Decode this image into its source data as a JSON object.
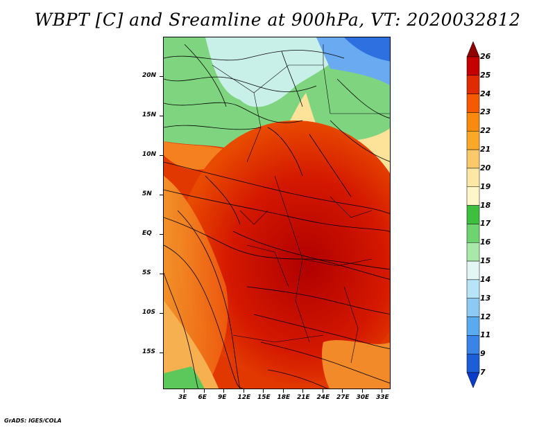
{
  "title": "WBPT [C] and Sreamline at 900hPa, VT: 2020032812",
  "footer": "GrADS: IGES/COLA",
  "map": {
    "variable": "Wet-bulb potential temperature",
    "units": "C",
    "level": "900hPa",
    "valid_time": "2020032812",
    "lat_labels": [
      "20N",
      "15N",
      "10N",
      "5N",
      "EQ",
      "5S",
      "10S",
      "15S"
    ],
    "lon_labels": [
      "3E",
      "6E",
      "9E",
      "12E",
      "15E",
      "18E",
      "21E",
      "24E",
      "27E",
      "30E",
      "33E"
    ]
  },
  "colorbar": {
    "labels": [
      "26",
      "25",
      "24",
      "23",
      "22",
      "21",
      "20",
      "19",
      "18",
      "17",
      "16",
      "15",
      "14",
      "13",
      "12",
      "11",
      "9",
      "7"
    ],
    "colors": [
      "#8f0000",
      "#c40000",
      "#e02a00",
      "#f55a00",
      "#f88a10",
      "#f9a828",
      "#fbc86a",
      "#fde7a4",
      "#fdf6c8",
      "#3fbf3f",
      "#6fd46f",
      "#a8e8a8",
      "#e2f6f4",
      "#b8e4f8",
      "#8ccaf4",
      "#5aaaf0",
      "#3a84e8",
      "#1c5ed8",
      "#0a3cc8"
    ]
  }
}
